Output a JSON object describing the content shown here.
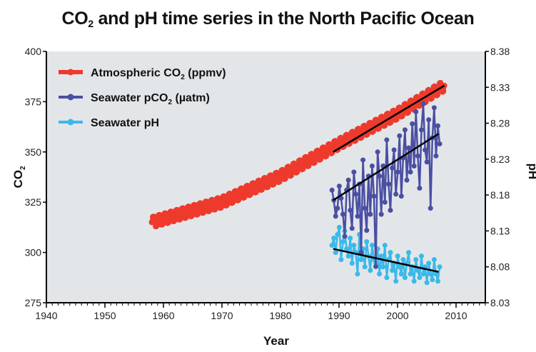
{
  "chart_data": {
    "type": "line",
    "title": "CO2 and pH time series in the North Pacific Ocean",
    "title_parts": {
      "pre": "CO",
      "sub": "2",
      "post": " and pH time series in the North Pacific Ocean"
    },
    "xlabel": "Year",
    "ylabel_left": "CO2",
    "ylabel_right": "pH",
    "xlim": [
      1940,
      2015
    ],
    "ylim_left": [
      275,
      400
    ],
    "ylim_right": [
      8.03,
      8.38
    ],
    "x_ticks": [
      1940,
      1950,
      1960,
      1970,
      1980,
      1990,
      2000,
      2010
    ],
    "y_ticks_left": [
      275,
      300,
      325,
      350,
      375,
      400
    ],
    "y_ticks_right": [
      "8.03",
      "8.08",
      "8.13",
      "8.18",
      "8.23",
      "8.28",
      "8.33",
      "8.38"
    ],
    "background": "#e3e6e9",
    "grid": false,
    "legend_position": "top-left",
    "series": [
      {
        "name": "Atmospheric CO2 (ppmv)",
        "legend_pre": "Atmospheric CO",
        "legend_sub": "2",
        "legend_post": " (ppmv)",
        "color": "#ee3a2c",
        "axis": "left",
        "x_start": 1958,
        "x_end": 2008,
        "fit": {
          "type": "quadratic",
          "points": [
            [
              1958,
              315
            ],
            [
              1970,
              325
            ],
            [
              1980,
              338
            ],
            [
              1990,
              354
            ],
            [
              2000,
              369
            ],
            [
              2008,
              383
            ]
          ]
        },
        "seasonal_amplitude": 3
      },
      {
        "name": "Seawater pCO2 (µatm)",
        "legend_pre": "Seawater pCO",
        "legend_sub": "2",
        "legend_post": " (µatm)",
        "color": "#4a4fa3",
        "axis": "left",
        "x_start": 1988.8,
        "x_end": 2007.2,
        "values": [
          331,
          326,
          318,
          322,
          333,
          327,
          319,
          308,
          331,
          336,
          321,
          312,
          340,
          329,
          318,
          334,
          300,
          346,
          322,
          311,
          338,
          319,
          343,
          328,
          293,
          350,
          338,
          319,
          343,
          325,
          356,
          334,
          321,
          342,
          351,
          329,
          340,
          358,
          328,
          347,
          361,
          336,
          352,
          340,
          364,
          343,
          370,
          348,
          332,
          361,
          374,
          351,
          345,
          366,
          322,
          357,
          372,
          348,
          363,
          354
        ]
      },
      {
        "name": "Seawater pH",
        "legend_pre": "Seawater pH",
        "legend_sub": "",
        "legend_post": "",
        "color": "#3bb9ea",
        "axis": "right",
        "x_start": 1988.8,
        "x_end": 2007.2,
        "values": [
          8.11,
          8.12,
          8.1,
          8.125,
          8.135,
          8.09,
          8.115,
          8.13,
          8.105,
          8.095,
          8.12,
          8.085,
          8.11,
          8.1,
          8.07,
          8.125,
          8.09,
          8.105,
          8.08,
          8.115,
          8.095,
          8.075,
          8.11,
          8.09,
          8.085,
          8.105,
          8.07,
          8.095,
          8.08,
          8.11,
          8.065,
          8.09,
          8.1,
          8.075,
          8.085,
          8.06,
          8.095,
          8.08,
          8.07,
          8.09,
          8.065,
          8.085,
          8.1,
          8.07,
          8.08,
          8.06,
          8.09,
          8.075,
          8.065,
          8.095,
          8.07,
          8.08,
          8.058,
          8.085,
          8.07,
          8.062,
          8.09,
          8.07,
          8.06,
          8.08
        ]
      }
    ],
    "trend_lines": [
      {
        "name": "atmospheric-co2-trend",
        "axis": "left",
        "from": [
          1989,
          350
        ],
        "to": [
          2008,
          383
        ]
      },
      {
        "name": "seawater-pco2-trend",
        "axis": "left",
        "from": [
          1989,
          326
        ],
        "to": [
          2007,
          359
        ]
      },
      {
        "name": "seawater-ph-trend",
        "axis": "right",
        "from": [
          1989,
          8.105
        ],
        "to": [
          2007,
          8.073
        ]
      }
    ]
  }
}
